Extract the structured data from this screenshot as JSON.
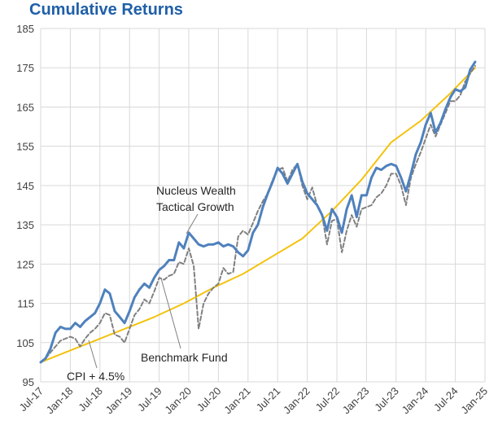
{
  "chart_data": {
    "type": "line",
    "title": "Cumulative Returns",
    "xlabel": "",
    "ylabel": "",
    "ylim": [
      95,
      185
    ],
    "yticks": [
      95,
      105,
      115,
      125,
      135,
      145,
      155,
      165,
      175,
      185
    ],
    "grid": true,
    "xticks": [
      "Jul-17",
      "Jan-18",
      "Jul-18",
      "Jan-19",
      "Jul-19",
      "Jan-20",
      "Jul-20",
      "Jan-21",
      "Jul-21",
      "Jan-22",
      "Jul-22",
      "Jan-23",
      "Jul-23",
      "Jan-24",
      "Jul-24",
      "Jan-25"
    ],
    "series": [
      {
        "name": "Nucleus Wealth Tactical Growth",
        "color": "#4f81bd",
        "style": "solid-thick",
        "points": [
          [
            "2017-07",
            100
          ],
          [
            "2017-08",
            101
          ],
          [
            "2017-09",
            103.5
          ],
          [
            "2017-10",
            107.5
          ],
          [
            "2017-11",
            109
          ],
          [
            "2017-12",
            108.5
          ],
          [
            "2018-01",
            108.5
          ],
          [
            "2018-02",
            110
          ],
          [
            "2018-03",
            109
          ],
          [
            "2018-04",
            110.5
          ],
          [
            "2018-05",
            111.5
          ],
          [
            "2018-06",
            112.5
          ],
          [
            "2018-07",
            115
          ],
          [
            "2018-08",
            118.5
          ],
          [
            "2018-09",
            117.5
          ],
          [
            "2018-10",
            113
          ],
          [
            "2018-11",
            111.5
          ],
          [
            "2018-12",
            110
          ],
          [
            "2019-01",
            113
          ],
          [
            "2019-02",
            116.5
          ],
          [
            "2019-03",
            118.5
          ],
          [
            "2019-04",
            120
          ],
          [
            "2019-05",
            119
          ],
          [
            "2019-06",
            121.5
          ],
          [
            "2019-07",
            123.5
          ],
          [
            "2019-08",
            124.5
          ],
          [
            "2019-09",
            126
          ],
          [
            "2019-10",
            126
          ],
          [
            "2019-11",
            130.5
          ],
          [
            "2019-12",
            129
          ],
          [
            "2020-01",
            133
          ],
          [
            "2020-02",
            131.5
          ],
          [
            "2020-03",
            130
          ],
          [
            "2020-04",
            129.5
          ],
          [
            "2020-05",
            130
          ],
          [
            "2020-06",
            130
          ],
          [
            "2020-07",
            130.5
          ],
          [
            "2020-08",
            129.5
          ],
          [
            "2020-09",
            130
          ],
          [
            "2020-10",
            129.5
          ],
          [
            "2020-11",
            128
          ],
          [
            "2020-12",
            127
          ],
          [
            "2021-01",
            128.5
          ],
          [
            "2021-02",
            133
          ],
          [
            "2021-03",
            135
          ],
          [
            "2021-04",
            139.5
          ],
          [
            "2021-05",
            143
          ],
          [
            "2021-06",
            146
          ],
          [
            "2021-07",
            149.5
          ],
          [
            "2021-08",
            148
          ],
          [
            "2021-09",
            145.5
          ],
          [
            "2021-10",
            148
          ],
          [
            "2021-11",
            150.5
          ],
          [
            "2021-12",
            146
          ],
          [
            "2022-01",
            143
          ],
          [
            "2022-02",
            141.5
          ],
          [
            "2022-03",
            140
          ],
          [
            "2022-04",
            137.5
          ],
          [
            "2022-05",
            133.5
          ],
          [
            "2022-06",
            139
          ],
          [
            "2022-07",
            137
          ],
          [
            "2022-08",
            133
          ],
          [
            "2022-09",
            139
          ],
          [
            "2022-10",
            142.5
          ],
          [
            "2022-11",
            137
          ],
          [
            "2022-12",
            142.5
          ],
          [
            "2023-01",
            142.5
          ],
          [
            "2023-02",
            147
          ],
          [
            "2023-03",
            149.5
          ],
          [
            "2023-04",
            149
          ],
          [
            "2023-05",
            150
          ],
          [
            "2023-06",
            150.5
          ],
          [
            "2023-07",
            150
          ],
          [
            "2023-08",
            147
          ],
          [
            "2023-09",
            143.5
          ],
          [
            "2023-10",
            148
          ],
          [
            "2023-11",
            153
          ],
          [
            "2023-12",
            156
          ],
          [
            "2024-01",
            160.5
          ],
          [
            "2024-02",
            163.5
          ],
          [
            "2024-03",
            158.5
          ],
          [
            "2024-04",
            161
          ],
          [
            "2024-05",
            164.5
          ],
          [
            "2024-06",
            167.5
          ],
          [
            "2024-07",
            169.5
          ],
          [
            "2024-08",
            169
          ],
          [
            "2024-09",
            170
          ],
          [
            "2024-10",
            174.5
          ],
          [
            "2024-11",
            176.5
          ]
        ]
      },
      {
        "name": "Benchmark Fund",
        "color": "#808080",
        "style": "dashed",
        "points": [
          [
            "2017-07",
            100
          ],
          [
            "2017-08",
            101
          ],
          [
            "2017-09",
            102.5
          ],
          [
            "2017-10",
            104
          ],
          [
            "2017-11",
            105.5
          ],
          [
            "2017-12",
            106
          ],
          [
            "2018-01",
            106.5
          ],
          [
            "2018-02",
            106
          ],
          [
            "2018-03",
            104
          ],
          [
            "2018-04",
            106
          ],
          [
            "2018-05",
            107.5
          ],
          [
            "2018-06",
            108.5
          ],
          [
            "2018-07",
            110
          ],
          [
            "2018-08",
            112.5
          ],
          [
            "2018-09",
            112
          ],
          [
            "2018-10",
            107
          ],
          [
            "2018-11",
            106.5
          ],
          [
            "2018-12",
            105
          ],
          [
            "2019-01",
            108.5
          ],
          [
            "2019-02",
            112
          ],
          [
            "2019-03",
            113.5
          ],
          [
            "2019-04",
            116
          ],
          [
            "2019-05",
            115
          ],
          [
            "2019-06",
            118
          ],
          [
            "2019-07",
            121.5
          ],
          [
            "2019-08",
            121
          ],
          [
            "2019-09",
            122
          ],
          [
            "2019-10",
            122.5
          ],
          [
            "2019-11",
            125.5
          ],
          [
            "2019-12",
            125
          ],
          [
            "2020-01",
            129
          ],
          [
            "2020-02",
            124.5
          ],
          [
            "2020-03",
            108.5
          ],
          [
            "2020-04",
            115
          ],
          [
            "2020-05",
            117.5
          ],
          [
            "2020-06",
            119
          ],
          [
            "2020-07",
            120
          ],
          [
            "2020-08",
            124
          ],
          [
            "2020-09",
            122.5
          ],
          [
            "2020-10",
            123
          ],
          [
            "2020-11",
            132
          ],
          [
            "2020-12",
            133.5
          ],
          [
            "2021-01",
            132.5
          ],
          [
            "2021-02",
            135.5
          ],
          [
            "2021-03",
            138.5
          ],
          [
            "2021-04",
            141
          ],
          [
            "2021-05",
            143
          ],
          [
            "2021-06",
            146.5
          ],
          [
            "2021-07",
            149
          ],
          [
            "2021-08",
            149.5
          ],
          [
            "2021-09",
            146
          ],
          [
            "2021-10",
            149
          ],
          [
            "2021-11",
            150.5
          ],
          [
            "2021-12",
            145
          ],
          [
            "2022-01",
            141.5
          ],
          [
            "2022-02",
            144.5
          ],
          [
            "2022-03",
            140
          ],
          [
            "2022-04",
            137.5
          ],
          [
            "2022-05",
            130
          ],
          [
            "2022-06",
            136
          ],
          [
            "2022-07",
            136.5
          ],
          [
            "2022-08",
            128
          ],
          [
            "2022-09",
            133.5
          ],
          [
            "2022-10",
            137.5
          ],
          [
            "2022-11",
            134.5
          ],
          [
            "2022-12",
            139
          ],
          [
            "2023-01",
            139.5
          ],
          [
            "2023-02",
            140
          ],
          [
            "2023-03",
            142
          ],
          [
            "2023-04",
            143
          ],
          [
            "2023-05",
            145
          ],
          [
            "2023-06",
            148
          ],
          [
            "2023-07",
            148
          ],
          [
            "2023-08",
            145
          ],
          [
            "2023-09",
            140
          ],
          [
            "2023-10",
            147
          ],
          [
            "2023-11",
            150.5
          ],
          [
            "2023-12",
            153.5
          ],
          [
            "2024-01",
            157
          ],
          [
            "2024-02",
            160.5
          ],
          [
            "2024-03",
            157.5
          ],
          [
            "2024-04",
            160.5
          ],
          [
            "2024-05",
            163.5
          ],
          [
            "2024-06",
            166.5
          ],
          [
            "2024-07",
            166.5
          ],
          [
            "2024-08",
            168
          ],
          [
            "2024-09",
            171.5
          ],
          [
            "2024-10",
            173.5
          ],
          [
            "2024-11",
            175.5
          ]
        ]
      },
      {
        "name": "CPI + 4.5%",
        "color": "#f4c20d",
        "style": "solid",
        "points": [
          [
            "2017-07",
            100
          ],
          [
            "2017-12",
            102.5
          ],
          [
            "2018-06",
            105.5
          ],
          [
            "2018-12",
            108.5
          ],
          [
            "2019-06",
            111.5
          ],
          [
            "2019-12",
            115
          ],
          [
            "2020-06",
            119
          ],
          [
            "2020-12",
            122.5
          ],
          [
            "2021-06",
            127
          ],
          [
            "2021-12",
            131.5
          ],
          [
            "2022-06",
            138.5
          ],
          [
            "2022-12",
            146.5
          ],
          [
            "2023-06",
            156
          ],
          [
            "2023-12",
            161.5
          ],
          [
            "2024-06",
            168.5
          ],
          [
            "2024-11",
            175
          ]
        ]
      }
    ],
    "annotations": [
      {
        "lines": [
          "Nucleus Wealth",
          "Tactical Growth"
        ],
        "series": "Nucleus Wealth Tactical Growth"
      },
      {
        "lines": [
          "Benchmark Fund"
        ],
        "series": "Benchmark Fund"
      },
      {
        "lines": [
          "CPI + 4.5%"
        ],
        "series": "CPI + 4.5%"
      }
    ]
  }
}
